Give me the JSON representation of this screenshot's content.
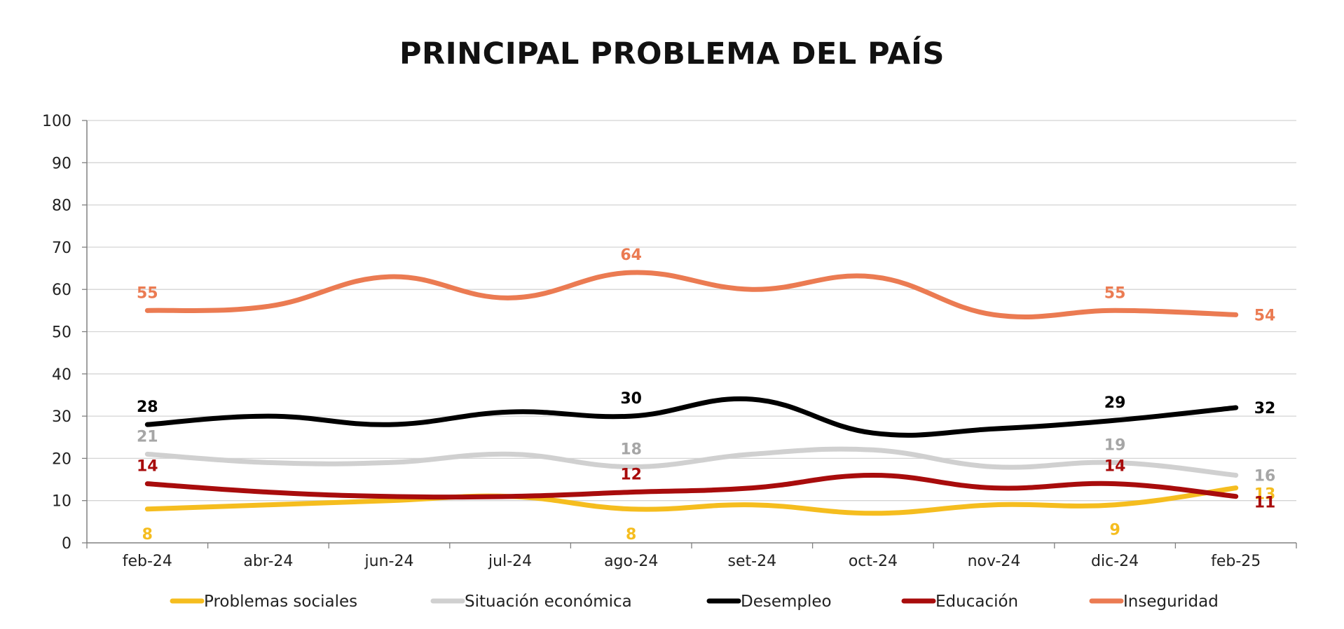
{
  "chart_data": {
    "type": "line",
    "title": "PRINCIPAL PROBLEMA DEL PAÍS",
    "xlabel": "",
    "ylabel": "",
    "categories": [
      "feb-24",
      "abr-24",
      "jun-24",
      "jul-24",
      "ago-24",
      "set-24",
      "oct-24",
      "nov-24",
      "dic-24",
      "feb-25"
    ],
    "ylim": [
      0,
      100
    ],
    "yticks": [
      "0",
      "10",
      "20",
      "30",
      "40",
      "50",
      "60",
      "70",
      "80",
      "90",
      "100"
    ],
    "grid": "horizontal",
    "legend": "bottom",
    "series": [
      {
        "name": "Problemas sociales",
        "color": "#F5BD1F",
        "values": [
          8,
          9,
          10,
          11,
          8,
          9,
          7,
          9,
          9,
          13
        ],
        "labels": [
          {
            "i": 0,
            "text": "8",
            "pos": "below"
          },
          {
            "i": 4,
            "text": "8",
            "pos": "below"
          },
          {
            "i": 8,
            "text": "9",
            "pos": "below"
          },
          {
            "i": 9,
            "text": "13",
            "pos": "right-low"
          }
        ]
      },
      {
        "name": "Situación económica",
        "color": "#D0D0D0",
        "labelColor": "#A6A6A6",
        "values": [
          21,
          19,
          19,
          21,
          18,
          21,
          22,
          18,
          19,
          16
        ],
        "labels": [
          {
            "i": 0,
            "text": "21",
            "pos": "above"
          },
          {
            "i": 4,
            "text": "18",
            "pos": "above"
          },
          {
            "i": 8,
            "text": "19",
            "pos": "above"
          },
          {
            "i": 9,
            "text": "16",
            "pos": "right"
          }
        ]
      },
      {
        "name": "Desempleo",
        "color": "#000000",
        "values": [
          28,
          30,
          28,
          31,
          30,
          34,
          26,
          27,
          29,
          32
        ],
        "labels": [
          {
            "i": 0,
            "text": "28",
            "pos": "above"
          },
          {
            "i": 4,
            "text": "30",
            "pos": "above"
          },
          {
            "i": 8,
            "text": "29",
            "pos": "above"
          },
          {
            "i": 9,
            "text": "32",
            "pos": "right"
          }
        ]
      },
      {
        "name": "Educación",
        "color": "#A80C0C",
        "values": [
          14,
          12,
          11,
          11,
          12,
          13,
          16,
          13,
          14,
          11
        ],
        "labels": [
          {
            "i": 0,
            "text": "14",
            "pos": "above"
          },
          {
            "i": 4,
            "text": "12",
            "pos": "above"
          },
          {
            "i": 8,
            "text": "14",
            "pos": "above"
          },
          {
            "i": 9,
            "text": "11",
            "pos": "right-low"
          }
        ]
      },
      {
        "name": "Inseguridad",
        "color": "#EB7B52",
        "values": [
          55,
          56,
          63,
          58,
          64,
          60,
          63,
          54,
          55,
          54
        ],
        "labels": [
          {
            "i": 0,
            "text": "55",
            "pos": "above"
          },
          {
            "i": 4,
            "text": "64",
            "pos": "above"
          },
          {
            "i": 8,
            "text": "55",
            "pos": "above"
          },
          {
            "i": 9,
            "text": "54",
            "pos": "right"
          }
        ]
      }
    ]
  }
}
